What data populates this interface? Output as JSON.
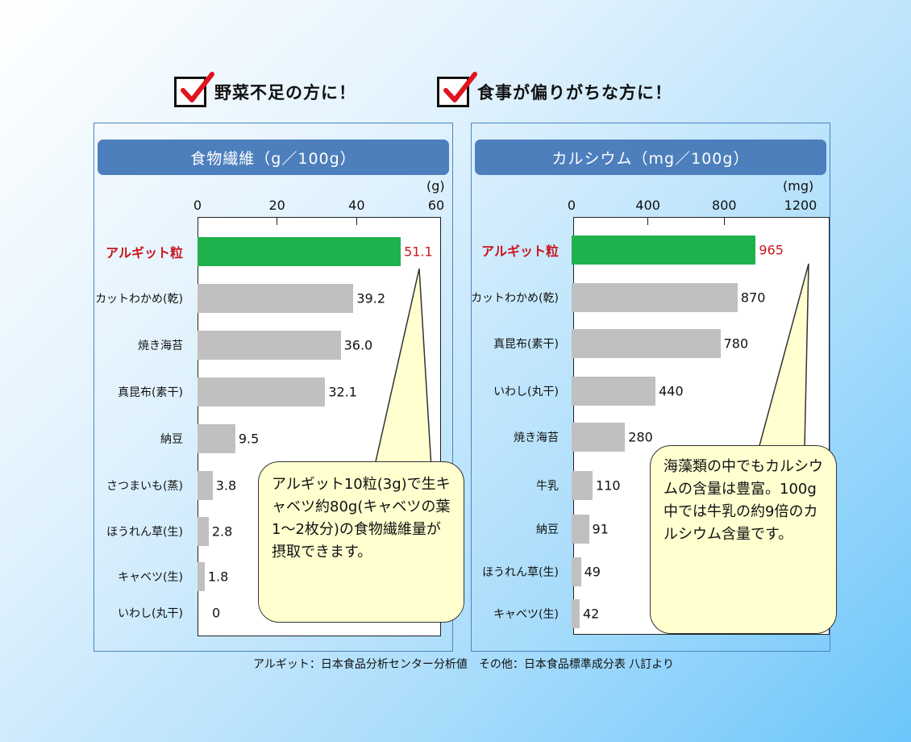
{
  "headers": {
    "left": "野菜不足の方に！",
    "right": "食事が偏りがちな方に！"
  },
  "colors": {
    "highlight_bar": "#1fb14c",
    "bar": "#c0c0c0",
    "highlight_text": "#c8161e",
    "title_bg": "#4d7fbd",
    "bubble_bg": "#ffffd0"
  },
  "chart_data": [
    {
      "type": "bar",
      "orientation": "horizontal",
      "title": "食物繊維（g／100g）",
      "unit": "(g)",
      "xlim": [
        0,
        60
      ],
      "xticks": [
        "0",
        "20",
        "40",
        "60"
      ],
      "categories": [
        "アルギット粒",
        "カットわかめ(乾)",
        "焼き海苔",
        "真昆布(素干)",
        "納豆",
        "さつまいも(蒸)",
        "ほうれん草(生)",
        "キャベツ(生)",
        "いわし(丸干)"
      ],
      "values": [
        51.1,
        39.2,
        36.0,
        32.1,
        9.5,
        3.8,
        2.8,
        1.8,
        0
      ],
      "value_labels": [
        "51.1",
        "39.2",
        "36.0",
        "32.1",
        "9.5",
        "3.8",
        "2.8",
        "1.8",
        "0"
      ],
      "highlight_index": 0,
      "annotation": "アルギット10粒(3g)で生キャベツ約80g(キャベツの葉1～2枚分)の食物繊維量が摂取できます。"
    },
    {
      "type": "bar",
      "orientation": "horizontal",
      "title": "カルシウム（mg／100g）",
      "unit": "(mg)",
      "xlim": [
        0,
        1200
      ],
      "xticks": [
        "0",
        "400",
        "800",
        "1200"
      ],
      "categories": [
        "アルギット粒",
        "カットわかめ(乾)",
        "真昆布(素干)",
        "いわし(丸干)",
        "焼き海苔",
        "牛乳",
        "納豆",
        "ほうれん草(生)",
        "キャベツ(生)"
      ],
      "values": [
        965,
        870,
        780,
        440,
        280,
        110,
        91,
        49,
        42
      ],
      "value_labels": [
        "965",
        "870",
        "780",
        "440",
        "280",
        "110",
        "91",
        "49",
        "42"
      ],
      "highlight_index": 0,
      "annotation": "海藻類の中でもカルシウムの含量は豊富。100g中では牛乳の約9倍のカルシウム含量です。"
    }
  ],
  "footnote": "アルギット：日本食品分析センター分析値　その他：日本食品標準成分表 八訂より"
}
